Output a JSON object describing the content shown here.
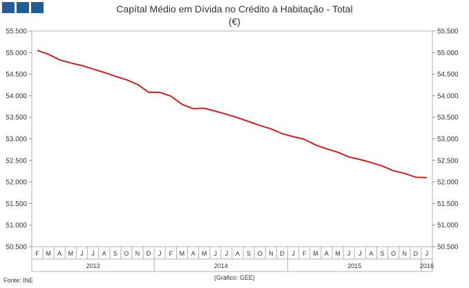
{
  "header": {
    "logo_colors": [
      "#1f5c99",
      "#1f5c99",
      "#1f5c99"
    ],
    "logo_icon": "ine-square-blocks-icon"
  },
  "chart_data": {
    "type": "line",
    "title": "Capítal Médio em Dívida no Crédito à Habitação - Total",
    "subtitle": "(€)",
    "ylim": [
      50500,
      55500
    ],
    "ytick_values": [
      50500,
      51000,
      51500,
      52000,
      52500,
      53000,
      53500,
      54000,
      54500,
      55000,
      55500
    ],
    "ytick_labels": [
      "50.500",
      "51.000",
      "51.500",
      "52.000",
      "52.500",
      "53.000",
      "53.500",
      "54.000",
      "54.500",
      "55.000",
      "55.500"
    ],
    "month_labels": [
      "F",
      "M",
      "A",
      "M",
      "J",
      "J",
      "A",
      "S",
      "O",
      "N",
      "D",
      "J",
      "F",
      "M",
      "A",
      "M",
      "J",
      "J",
      "A",
      "S",
      "O",
      "N",
      "D",
      "J",
      "F",
      "M",
      "A",
      "M",
      "J",
      "J",
      "A",
      "S",
      "O",
      "N",
      "D",
      "J"
    ],
    "year_labels": [
      {
        "label": "2013",
        "start": 0,
        "end": 10
      },
      {
        "label": "2014",
        "start": 11,
        "end": 22
      },
      {
        "label": "2015",
        "start": 23,
        "end": 34
      },
      {
        "label": "2016",
        "start": 35,
        "end": 35
      }
    ],
    "series": [
      {
        "color": "#cc1f1f",
        "values": [
          55050,
          54960,
          54830,
          54760,
          54700,
          54620,
          54540,
          54450,
          54370,
          54260,
          54080,
          54080,
          53990,
          53800,
          53700,
          53710,
          53640,
          53570,
          53490,
          53400,
          53310,
          53230,
          53120,
          53050,
          52990,
          52860,
          52770,
          52690,
          52580,
          52520,
          52450,
          52370,
          52260,
          52200,
          52110,
          52100
        ]
      }
    ],
    "grid": false,
    "legend": "none"
  },
  "footer": {
    "source": "Fonte: INE",
    "credit": "(Gráfico: GEE)"
  }
}
